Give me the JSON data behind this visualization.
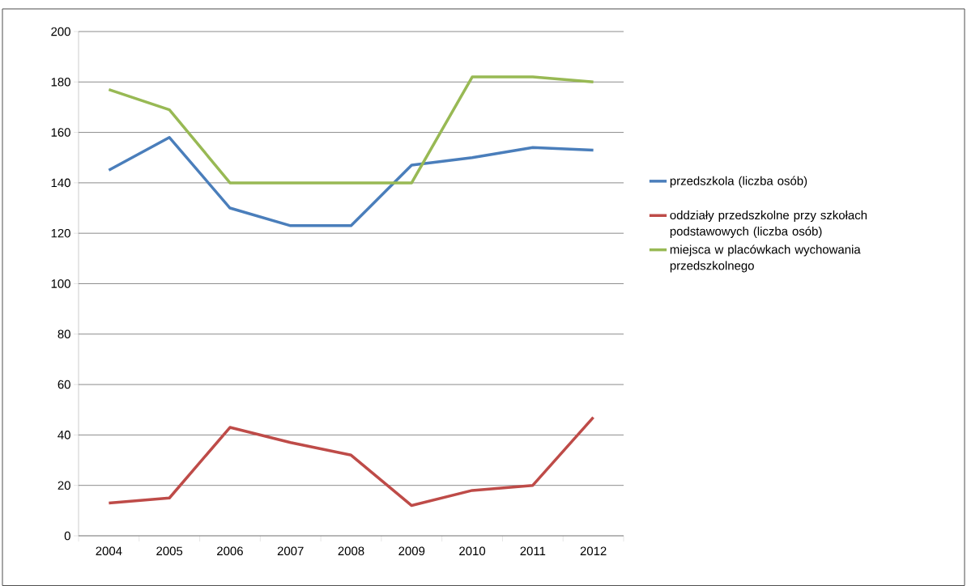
{
  "chart_data": {
    "type": "line",
    "categories": [
      "2004",
      "2005",
      "2006",
      "2007",
      "2008",
      "2009",
      "2010",
      "2011",
      "2012"
    ],
    "series": [
      {
        "name": "przedszkola (liczba osób)",
        "color": "#4a7ebb",
        "values": [
          145,
          158,
          130,
          123,
          123,
          147,
          150,
          154,
          153
        ]
      },
      {
        "name": "oddziały przedszkolne przy szkołach podstawowych (liczba osób)",
        "color": "#be4b48",
        "values": [
          13,
          15,
          43,
          37,
          32,
          12,
          18,
          20,
          47
        ]
      },
      {
        "name": "miejsca w placówkach wychowania przedszkolnego",
        "color": "#98b954",
        "values": [
          177,
          169,
          140,
          140,
          140,
          140,
          182,
          182,
          180
        ]
      }
    ],
    "ylim": [
      0,
      200
    ],
    "yticks": [
      0,
      20,
      40,
      60,
      80,
      100,
      120,
      140,
      160,
      180,
      200
    ],
    "grid": "y",
    "legend": "right",
    "marker": "none",
    "line_style": "solid"
  }
}
